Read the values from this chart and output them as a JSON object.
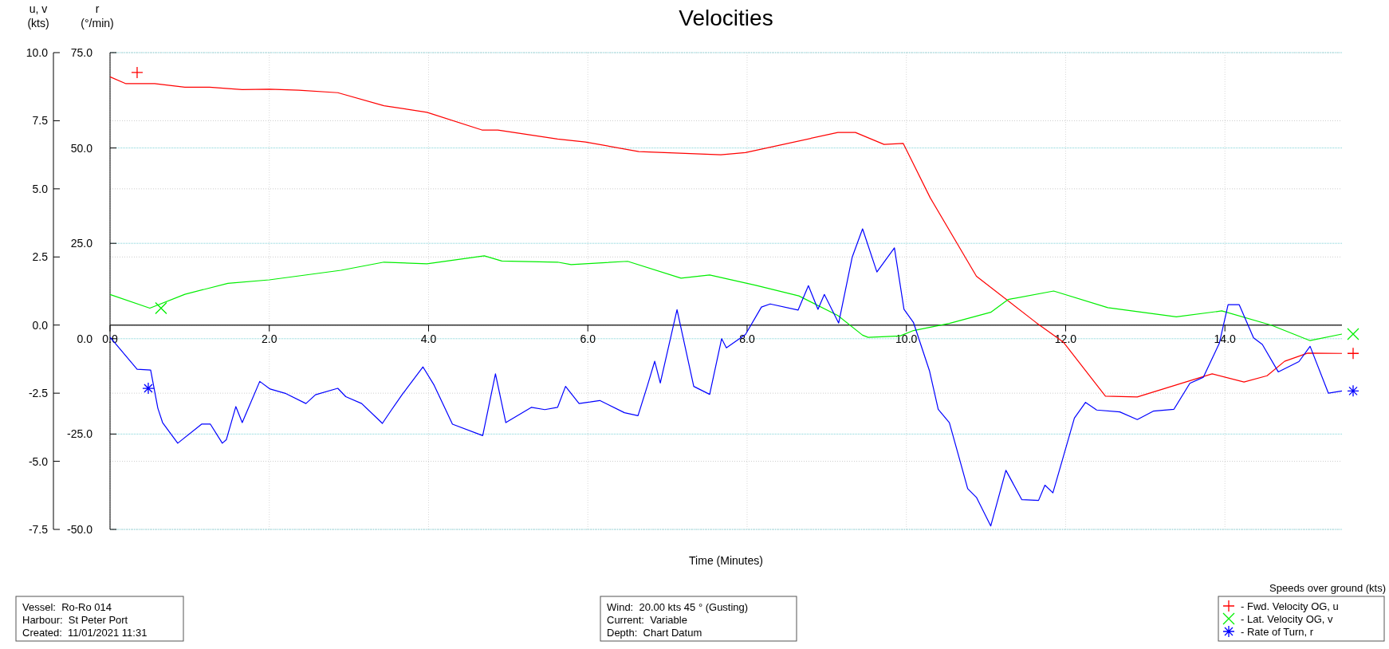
{
  "chart_data": {
    "type": "line",
    "title": "Velocities",
    "xlabel": "Time (Minutes)",
    "ylabel": "u, v\n(kts)",
    "y2label": "r\n(°/min)",
    "legend_title": "Speeds over ground (kts)",
    "xlim": [
      0,
      15.47
    ],
    "xticks": [
      {
        "value": 0,
        "label": "0.0"
      },
      {
        "value": 2,
        "label": "2.0"
      },
      {
        "value": 4,
        "label": "4.0"
      },
      {
        "value": 6,
        "label": "6.0"
      },
      {
        "value": 8,
        "label": "8.0"
      },
      {
        "value": 10,
        "label": "10.0"
      },
      {
        "value": 12,
        "label": "12.0"
      },
      {
        "value": 14,
        "label": "14.0"
      }
    ],
    "ylim": [
      -7.5,
      10
    ],
    "yticks": [
      {
        "value": -7.5,
        "label": "-7.5"
      },
      {
        "value": -5,
        "label": "-5.0"
      },
      {
        "value": -2.5,
        "label": "-2.5"
      },
      {
        "value": 0,
        "label": "0.0"
      },
      {
        "value": 2.5,
        "label": "2.5"
      },
      {
        "value": 5,
        "label": "5.0"
      },
      {
        "value": 7.5,
        "label": "7.5"
      },
      {
        "value": 10,
        "label": "10.0"
      }
    ],
    "y2lim": [
      -50,
      75
    ],
    "y2ticks": [
      {
        "value": -50,
        "label": "-50.0"
      },
      {
        "value": -25,
        "label": "-25.0"
      },
      {
        "value": 0,
        "label": "0.0"
      },
      {
        "value": 25,
        "label": "25.0"
      },
      {
        "value": 50,
        "label": "50.0"
      },
      {
        "value": 75,
        "label": "75.0"
      }
    ],
    "grid": true,
    "legend": "bottom right",
    "series": [
      {
        "name": "- Fwd. Velocity OG, u",
        "color": "#ff0000",
        "x": [
          0,
          0.2,
          0.56,
          0.94,
          1.25,
          1.66,
          2.0,
          2.37,
          2.86,
          3.44,
          3.98,
          4.67,
          4.87,
          5.62,
          5.97,
          6.64,
          7.67,
          7.98,
          9.14,
          9.36,
          9.72,
          9.96,
          10.3,
          10.88,
          11.63,
          11.97,
          12.5,
          12.9,
          13.84,
          14.24,
          14.53,
          14.75,
          15.04,
          15.47
        ],
        "values": [
          9.11,
          8.86,
          8.86,
          8.73,
          8.73,
          8.64,
          8.66,
          8.62,
          8.53,
          8.05,
          7.81,
          7.16,
          7.16,
          6.83,
          6.72,
          6.37,
          6.25,
          6.33,
          7.07,
          7.07,
          6.63,
          6.67,
          4.67,
          1.79,
          0.09,
          -0.62,
          -2.61,
          -2.64,
          -1.79,
          -2.09,
          -1.86,
          -1.33,
          -1.03,
          -1.04
        ]
      },
      {
        "name": "- Lat. Velocity OG, v",
        "color": "#00ee00",
        "x": [
          0,
          0.5,
          0.94,
          1.48,
          2.0,
          2.9,
          3.44,
          3.98,
          4.7,
          4.92,
          5.62,
          5.79,
          6.5,
          7.17,
          7.53,
          8.11,
          8.65,
          9.14,
          9.45,
          9.52,
          9.92,
          10.09,
          10.54,
          11.06,
          11.28,
          11.85,
          12.53,
          13.39,
          13.96,
          14.58,
          15.07,
          15.47
        ],
        "values": [
          1.12,
          0.62,
          1.13,
          1.53,
          1.66,
          2.01,
          2.31,
          2.25,
          2.54,
          2.35,
          2.31,
          2.22,
          2.34,
          1.72,
          1.84,
          1.46,
          1.07,
          0.35,
          -0.37,
          -0.45,
          -0.4,
          -0.2,
          0.06,
          0.47,
          0.94,
          1.25,
          0.64,
          0.3,
          0.52,
          0,
          -0.57,
          -0.33
        ]
      },
      {
        "name": "- Rate of Turn, r",
        "color": "#0000ff",
        "axis": "y2",
        "x": [
          0,
          0.34,
          0.51,
          0.6,
          0.66,
          0.85,
          1.15,
          1.26,
          1.41,
          1.46,
          1.58,
          1.66,
          1.88,
          2.01,
          2.21,
          2.46,
          2.58,
          2.86,
          2.96,
          3.16,
          3.42,
          3.53,
          3.67,
          3.93,
          4.07,
          4.3,
          4.68,
          4.84,
          4.97,
          5.29,
          5.46,
          5.62,
          5.72,
          5.89,
          6.03,
          6.15,
          6.46,
          6.63,
          6.75,
          6.84,
          6.91,
          7.12,
          7.33,
          7.53,
          7.68,
          7.74,
          7.98,
          8.18,
          8.29,
          8.64,
          8.77,
          8.89,
          8.97,
          9.15,
          9.32,
          9.45,
          9.63,
          9.85,
          9.97,
          10.09,
          10.29,
          10.4,
          10.54,
          10.66,
          10.77,
          10.88,
          11.06,
          11.25,
          11.45,
          11.66,
          11.74,
          11.84,
          11.97,
          12.11,
          12.25,
          12.39,
          12.68,
          12.9,
          13.1,
          13.36,
          13.56,
          13.73,
          13.93,
          14.04,
          14.18,
          14.36,
          14.47,
          14.67,
          14.93,
          15.07,
          15.3,
          15.47
        ],
        "values": [
          0.4,
          -8,
          -8.2,
          -18.2,
          -22,
          -27.4,
          -22.4,
          -22.4,
          -27.4,
          -26.5,
          -17.8,
          -22,
          -11.2,
          -13.2,
          -14.4,
          -17,
          -14.7,
          -13,
          -15.2,
          -17,
          -22.2,
          -18.8,
          -14.6,
          -7.4,
          -12.2,
          -22.4,
          -25.4,
          -9.2,
          -22,
          -18,
          -18.6,
          -18,
          -12.5,
          -17,
          -16.6,
          -16.2,
          -19.4,
          -20.2,
          -12.2,
          -5.9,
          -11.6,
          7.6,
          -12.5,
          -14.6,
          0,
          -2.4,
          1.1,
          8.3,
          9.1,
          7.5,
          13.9,
          7.7,
          11.6,
          4.1,
          21.4,
          28.8,
          17.5,
          23.8,
          7.7,
          4.2,
          -8.4,
          -18.5,
          -22,
          -31,
          -39.3,
          -41.6,
          -49.1,
          -34.5,
          -42.2,
          -42.4,
          -38.4,
          -40.4,
          -31,
          -20.8,
          -16.7,
          -18.7,
          -19.2,
          -21.2,
          -19,
          -18.5,
          -11.7,
          -10.1,
          -1.2,
          8.9,
          8.9,
          0.2,
          -1.5,
          -8.7,
          -6,
          -2,
          -14.3,
          -13.7
        ]
      }
    ],
    "annotations": [
      "Vessel:  Ro-Ro 014",
      "Harbour:  St Peter Port",
      "Created:  11/01/2021 11:31",
      "Wind:  20.00 kts 45 ° (Gusting)",
      "Current:  Variable",
      "Depth:  Chart Datum"
    ]
  }
}
